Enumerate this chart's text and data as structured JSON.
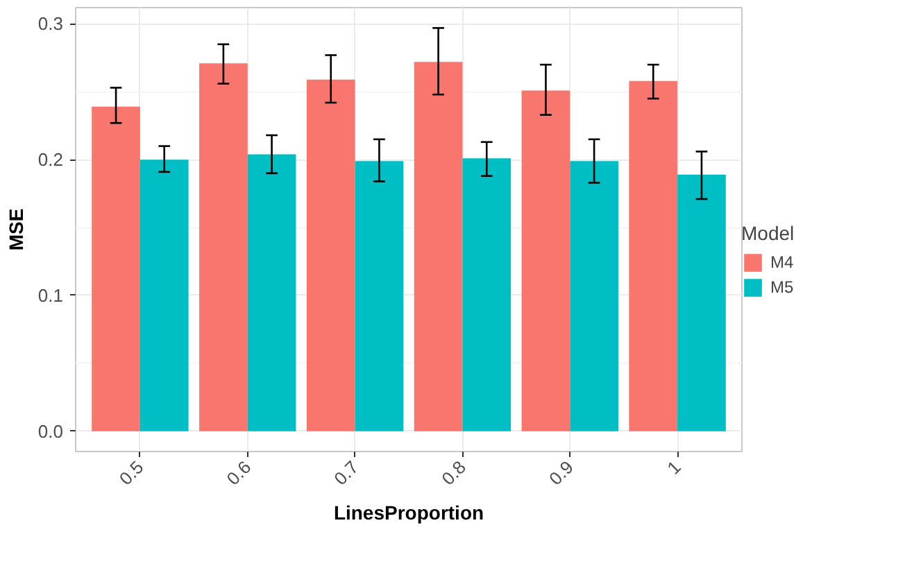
{
  "chart_data": {
    "type": "bar",
    "xlabel": "LinesProportion",
    "ylabel": "MSE",
    "legend_title": "Model",
    "categories": [
      "0.5",
      "0.6",
      "0.7",
      "0.8",
      "0.9",
      "1"
    ],
    "series": [
      {
        "name": "M4",
        "color": "#f8766d",
        "values": [
          0.239,
          0.271,
          0.259,
          0.272,
          0.251,
          0.258
        ],
        "errors": [
          [
            0.227,
            0.253
          ],
          [
            0.256,
            0.285
          ],
          [
            0.242,
            0.277
          ],
          [
            0.248,
            0.297
          ],
          [
            0.233,
            0.27
          ],
          [
            0.245,
            0.27
          ]
        ]
      },
      {
        "name": "M5",
        "color": "#00bfc4",
        "values": [
          0.2,
          0.204,
          0.199,
          0.201,
          0.199,
          0.189
        ],
        "errors": [
          [
            0.191,
            0.21
          ],
          [
            0.19,
            0.218
          ],
          [
            0.184,
            0.215
          ],
          [
            0.188,
            0.213
          ],
          [
            0.183,
            0.215
          ],
          [
            0.171,
            0.206
          ]
        ]
      }
    ],
    "ylim": [
      -0.015,
      0.312
    ],
    "yticks": [
      {
        "value": 0,
        "label": "0.0"
      },
      {
        "value": 0.1,
        "label": "0.1"
      },
      {
        "value": 0.2,
        "label": "0.2"
      },
      {
        "value": 0.3,
        "label": "0.3"
      }
    ],
    "grid": true,
    "legend": "right"
  }
}
